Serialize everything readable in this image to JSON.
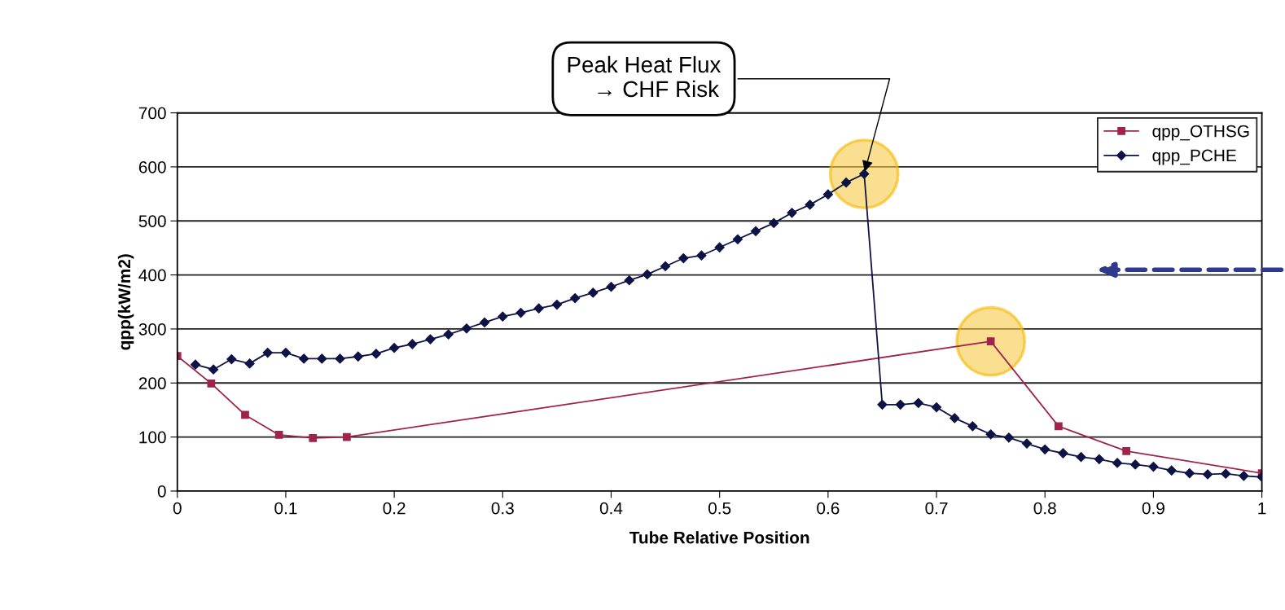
{
  "chart_data": {
    "type": "line",
    "xlabel": "Tube Relative Position",
    "ylabel": "qpp(kW/m2)",
    "xlim": [
      0,
      1
    ],
    "xticks": [
      0,
      0.1,
      0.2,
      0.3,
      0.4,
      0.5,
      0.6,
      0.7,
      0.8,
      0.9,
      1
    ],
    "ylim": [
      0,
      700
    ],
    "yticks": [
      0,
      100,
      200,
      300,
      400,
      500,
      600,
      700
    ],
    "grid": "y",
    "legend": "top right",
    "line_style": "solid",
    "annotations": [
      {
        "text": "Peak Heat Flux\n    → CHF Risk",
        "x": 0.6333,
        "y": 587
      }
    ],
    "series": [
      {
        "name": "qpp_OTHSG",
        "color": "#a0244a",
        "marker": "square",
        "x": [
          0,
          0.03125,
          0.0625,
          0.09375,
          0.125,
          0.15625,
          0.75,
          0.8125,
          0.875,
          1
        ],
        "values": [
          250,
          199,
          141,
          104,
          98,
          100,
          277,
          120,
          74,
          33
        ]
      },
      {
        "name": "qpp_PCHE",
        "color": "#0d1445",
        "marker": "diamond",
        "x": [
          0.0167,
          0.0333,
          0.05,
          0.0667,
          0.0833,
          0.1,
          0.1167,
          0.1333,
          0.15,
          0.1667,
          0.1833,
          0.2,
          0.2167,
          0.2333,
          0.25,
          0.2667,
          0.2833,
          0.3,
          0.3167,
          0.3333,
          0.35,
          0.3667,
          0.3833,
          0.4,
          0.4167,
          0.4333,
          0.45,
          0.4667,
          0.4833,
          0.5,
          0.5167,
          0.5333,
          0.55,
          0.5667,
          0.5833,
          0.6,
          0.6167,
          0.6333,
          0.65,
          0.6667,
          0.6833,
          0.7,
          0.7167,
          0.7333,
          0.75,
          0.7667,
          0.7833,
          0.8,
          0.8167,
          0.8333,
          0.85,
          0.8667,
          0.8833,
          0.9,
          0.9167,
          0.9333,
          0.95,
          0.9667,
          0.9833,
          1
        ],
        "values": [
          234,
          225,
          244,
          236,
          256,
          256,
          245,
          245,
          245,
          249,
          254,
          265,
          272,
          281,
          290,
          301,
          312,
          323,
          330,
          338,
          345,
          357,
          367,
          378,
          390,
          401,
          416,
          431,
          436,
          451,
          466,
          481,
          496,
          515,
          530,
          549,
          571,
          587,
          160,
          160,
          163,
          155,
          135,
          120,
          105,
          99,
          88,
          77,
          70,
          63,
          59,
          52,
          49,
          45,
          38,
          33,
          31,
          32,
          28,
          26
        ]
      }
    ]
  }
}
